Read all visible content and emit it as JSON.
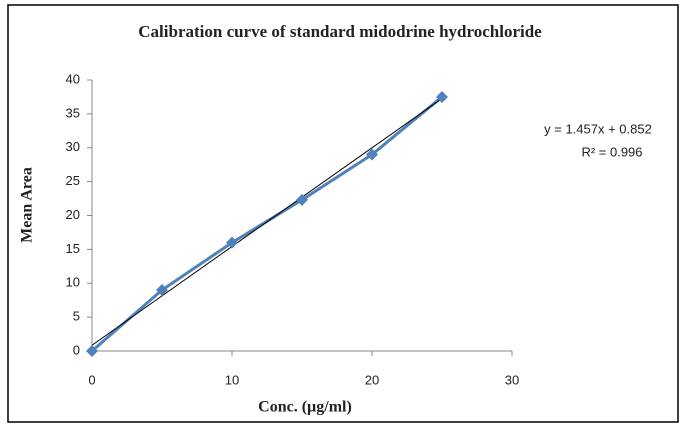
{
  "chart_data": {
    "type": "line",
    "title": "Calibration curve of standard midodrine hydrochloride",
    "x_label": "Conc. (µg/ml)",
    "y_label": "Mean Area",
    "x": [
      0,
      5,
      10,
      15,
      20,
      25
    ],
    "series": [
      {
        "color": "#4f81bd",
        "values": [
          0,
          9,
          16,
          22.3,
          29,
          37.5
        ]
      }
    ],
    "trendline": {
      "x": [
        0,
        25
      ],
      "values": [
        0.852,
        37.277
      ],
      "color": "#000000"
    },
    "annotations": [
      "y = 1.457x + 0.852",
      "R² = 0.996"
    ],
    "xlim": [
      0,
      30
    ],
    "xticks": [
      0,
      10,
      20,
      30
    ],
    "ylim": [
      0,
      40
    ],
    "yticks": [
      0,
      5,
      10,
      15,
      20,
      25,
      30,
      35,
      40
    ],
    "grid": false
  }
}
